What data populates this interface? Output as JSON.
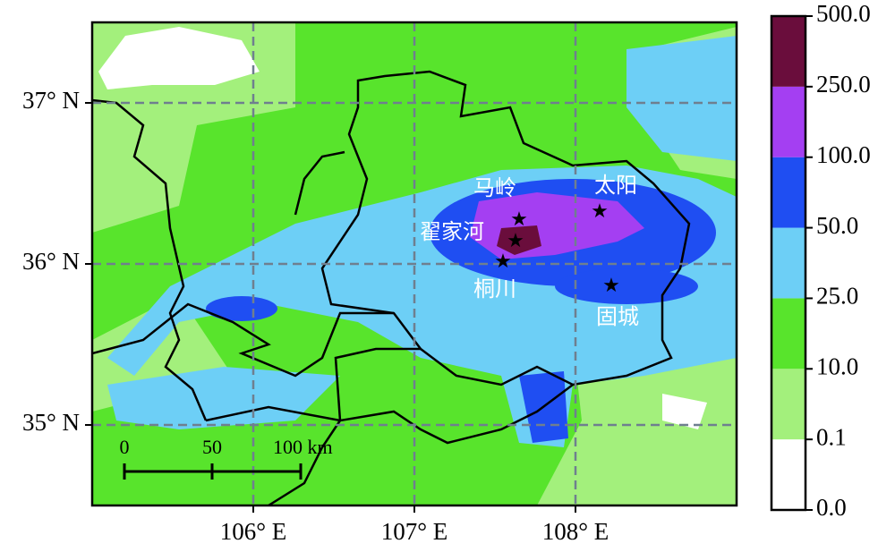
{
  "map": {
    "xlim": [
      105,
      109
    ],
    "ylim": [
      34.5,
      37.5
    ],
    "xticks": [
      {
        "value": 106,
        "label": "106° E"
      },
      {
        "value": 107,
        "label": "107° E"
      },
      {
        "value": 108,
        "label": "108° E"
      }
    ],
    "yticks": [
      {
        "value": 35,
        "label": "35° N"
      },
      {
        "value": 36,
        "label": "36° N"
      },
      {
        "value": 37,
        "label": "37° N"
      }
    ],
    "grid": true,
    "stations": [
      "马岭",
      "翟家河",
      "桐川",
      "太阳",
      "固城"
    ],
    "scale_bar": [
      "0",
      "50",
      "100 km"
    ]
  },
  "colorbar": {
    "ticks": [
      {
        "value": 0,
        "label": "0.0"
      },
      {
        "value": 0.1,
        "label": "0.1"
      },
      {
        "value": 10,
        "label": "10.0"
      },
      {
        "value": 25,
        "label": "25.0"
      },
      {
        "value": 50,
        "label": "50.0"
      },
      {
        "value": 100,
        "label": "100.0"
      },
      {
        "value": 250,
        "label": "250.0"
      },
      {
        "value": 500,
        "label": "500.0"
      }
    ],
    "colors": [
      "#ffffff",
      "#a3f07c",
      "#58e42c",
      "#6dcff6",
      "#1f4ef2",
      "#a43ff2",
      "#6a0d3c"
    ]
  }
}
